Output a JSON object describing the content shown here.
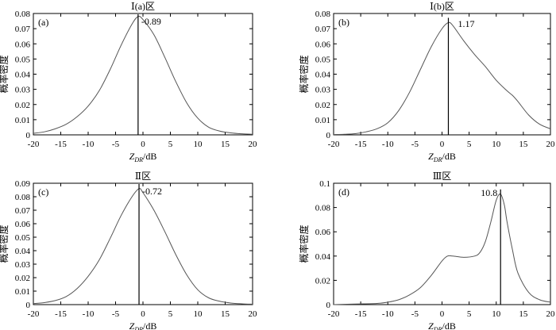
{
  "chart_data": [
    {
      "type": "line",
      "title": "Ⅰ(a)区",
      "panel_label": "(a)",
      "xlabel": "Z_DR/dB",
      "ylabel": "概率密度",
      "xlim": [
        -20,
        20
      ],
      "ylim": [
        0,
        0.08
      ],
      "xticks": [
        -20,
        -15,
        -10,
        -5,
        0,
        5,
        10,
        15,
        20
      ],
      "yticks": [
        0,
        0.01,
        0.02,
        0.03,
        0.04,
        0.05,
        0.06,
        0.07,
        0.08
      ],
      "peak_x": -0.89,
      "peak_label": "-0.89",
      "series": [
        {
          "x": [
            -20,
            -18,
            -16,
            -14,
            -12,
            -10,
            -8,
            -6,
            -4,
            -2,
            -0.89,
            0,
            2,
            4,
            6,
            8,
            10,
            12,
            14,
            16,
            18,
            20
          ],
          "y": [
            0.001,
            0.002,
            0.004,
            0.007,
            0.012,
            0.019,
            0.029,
            0.043,
            0.059,
            0.073,
            0.078,
            0.076,
            0.066,
            0.051,
            0.035,
            0.021,
            0.011,
            0.005,
            0.0025,
            0.0013,
            0.0007,
            0.0004
          ]
        }
      ]
    },
    {
      "type": "line",
      "title": "Ⅰ(b)区",
      "panel_label": "(b)",
      "xlabel": "Z_DR/dB",
      "ylabel": "概率密度",
      "xlim": [
        -20,
        20
      ],
      "ylim": [
        0,
        0.08
      ],
      "xticks": [
        -20,
        -15,
        -10,
        -5,
        0,
        5,
        10,
        15,
        20
      ],
      "yticks": [
        0,
        0.01,
        0.02,
        0.03,
        0.04,
        0.05,
        0.06,
        0.07,
        0.08
      ],
      "peak_x": 1.17,
      "peak_label": "1.17",
      "series": [
        {
          "x": [
            -20,
            -18,
            -16,
            -14,
            -12,
            -10,
            -8,
            -6,
            -4,
            -2,
            0,
            1.17,
            2,
            4,
            6,
            8,
            10,
            12,
            13,
            14,
            16,
            18,
            20
          ],
          "y": [
            0.0002,
            0.0004,
            0.0008,
            0.002,
            0.004,
            0.008,
            0.016,
            0.028,
            0.043,
            0.058,
            0.07,
            0.074,
            0.072,
            0.062,
            0.053,
            0.045,
            0.036,
            0.029,
            0.026,
            0.022,
            0.013,
            0.007,
            0.004
          ]
        }
      ]
    },
    {
      "type": "line",
      "title": "Ⅱ区",
      "panel_label": "(c)",
      "xlabel": "Z_DR/dB",
      "ylabel": "概率密度",
      "xlim": [
        -20,
        20
      ],
      "ylim": [
        0,
        0.09
      ],
      "xticks": [
        -20,
        -15,
        -10,
        -5,
        0,
        5,
        10,
        15,
        20
      ],
      "yticks": [
        0,
        0.01,
        0.02,
        0.03,
        0.04,
        0.05,
        0.06,
        0.07,
        0.08,
        0.09
      ],
      "peak_x": -0.72,
      "peak_label": "-0.72",
      "series": [
        {
          "x": [
            -20,
            -18,
            -16,
            -14,
            -12,
            -10,
            -8,
            -6,
            -4,
            -2,
            -0.72,
            0,
            2,
            4,
            6,
            8,
            10,
            12,
            14,
            16,
            18,
            20
          ],
          "y": [
            0.0008,
            0.0015,
            0.003,
            0.006,
            0.012,
            0.021,
            0.033,
            0.049,
            0.066,
            0.08,
            0.086,
            0.083,
            0.07,
            0.054,
            0.037,
            0.022,
            0.011,
            0.005,
            0.0025,
            0.0012,
            0.0006,
            0.0003
          ]
        }
      ]
    },
    {
      "type": "line",
      "title": "Ⅲ区",
      "panel_label": "(d)",
      "xlabel": "Z_DR/dB",
      "ylabel": "概率密度",
      "xlim": [
        -20,
        20
      ],
      "ylim": [
        0,
        0.1
      ],
      "xticks": [
        -20,
        -15,
        -10,
        -5,
        0,
        5,
        10,
        15,
        20
      ],
      "yticks": [
        0,
        0.02,
        0.04,
        0.06,
        0.08,
        0.1
      ],
      "peak_x": 10.8,
      "peak_label": "10.8",
      "series": [
        {
          "x": [
            -20,
            -16,
            -12,
            -10,
            -8,
            -6,
            -4,
            -2,
            0,
            1,
            2,
            4,
            6,
            7,
            8,
            9,
            10,
            10.8,
            11.5,
            12,
            13,
            14,
            16,
            18,
            20
          ],
          "y": [
            0,
            0.0005,
            0.001,
            0.002,
            0.004,
            0.008,
            0.014,
            0.024,
            0.036,
            0.04,
            0.04,
            0.039,
            0.04,
            0.043,
            0.052,
            0.068,
            0.086,
            0.091,
            0.082,
            0.068,
            0.045,
            0.026,
            0.01,
            0.004,
            0.002
          ]
        }
      ]
    }
  ]
}
